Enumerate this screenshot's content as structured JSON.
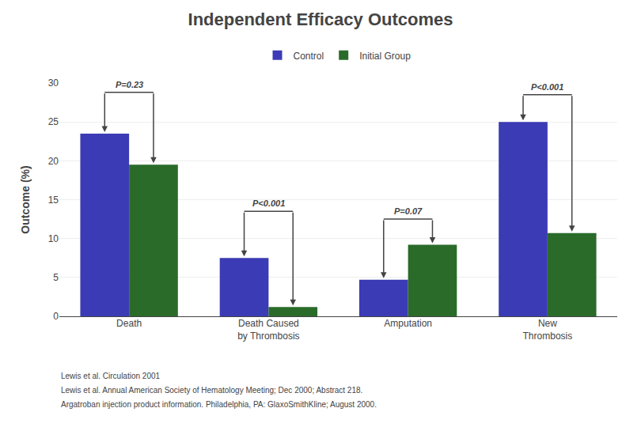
{
  "chart_data": {
    "type": "bar",
    "title": "Independent Efficacy Outcomes",
    "ylabel": "Outcome (%)",
    "categories": [
      "Death",
      "Death Caused\nby Thrombosis",
      "Amputation",
      "New\nThrombosis"
    ],
    "series": [
      {
        "name": "Control",
        "color": "#3B3BB5",
        "values": [
          23.5,
          7.5,
          4.7,
          25.0
        ]
      },
      {
        "name": "Initial Group",
        "color": "#2A6B2A",
        "values": [
          19.5,
          1.2,
          9.2,
          10.7
        ]
      }
    ],
    "ylim": [
      0,
      30
    ],
    "yticks": [
      0,
      5,
      10,
      15,
      20,
      25,
      30
    ],
    "grid": true,
    "legend": "upper center",
    "annotations": [
      {
        "text": "P=0.23",
        "x": "Death",
        "y": 28.8
      },
      {
        "text": "P<0.001",
        "x": "Death Caused\nby Thrombosis",
        "y": 13.5
      },
      {
        "text": "P=0.07",
        "x": "Amputation",
        "y": 12.5
      },
      {
        "text": "P<0.001",
        "x": "New\nThrombosis",
        "y": 28.5
      }
    ],
    "footnotes": [
      "Lewis et al. Circulation 2001",
      "Lewis et al. Annual American Society of Hematology Meeting; Dec 2000; Abstract 218.",
      "Argatroban injection product information. Philadelphia, PA: GlaxoSmithKline; August 2000."
    ]
  }
}
